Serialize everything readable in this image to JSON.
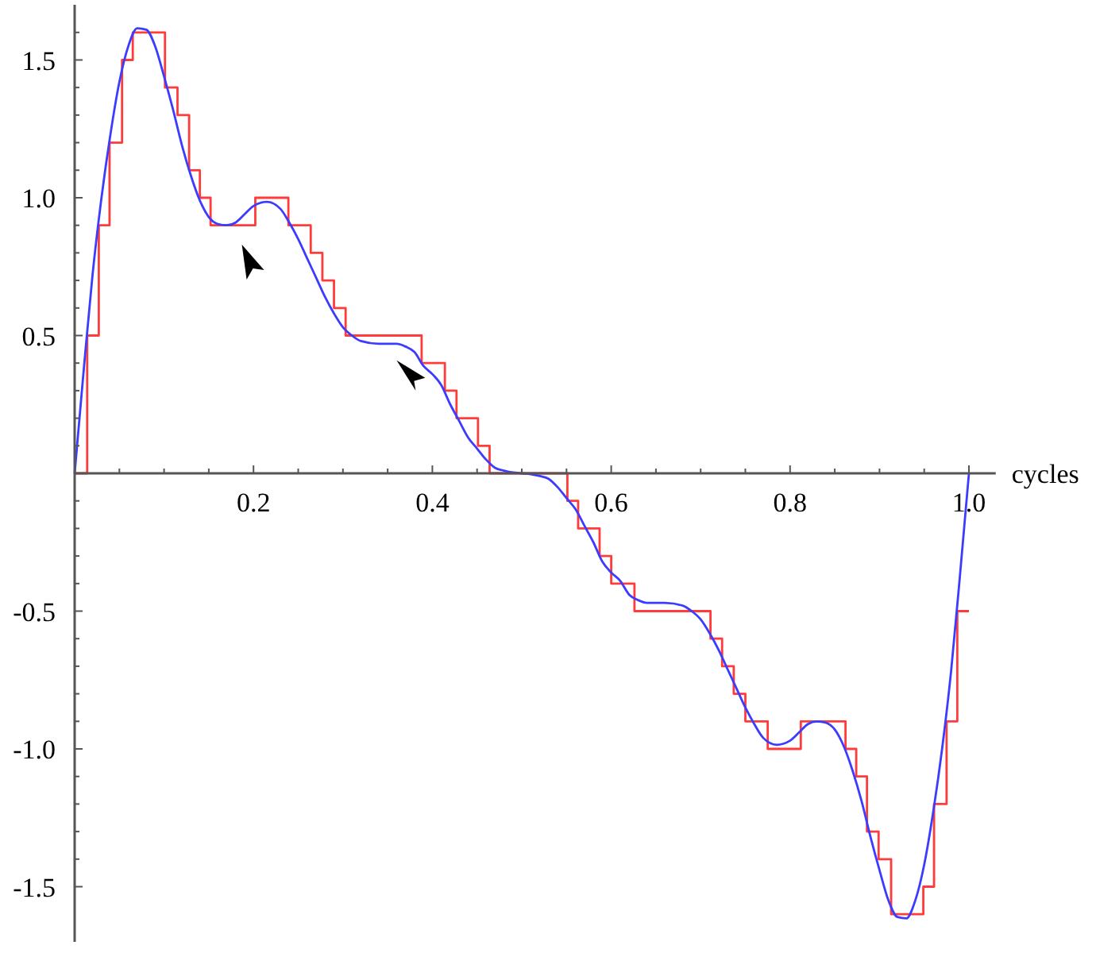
{
  "chart_data": {
    "type": "line",
    "xlabel": "cycles",
    "xlim": [
      0,
      1.03
    ],
    "ylim": [
      -1.7,
      1.7
    ],
    "xticks": [
      {
        "value": 0.05,
        "label": null
      },
      {
        "value": 0.1,
        "label": null
      },
      {
        "value": 0.15,
        "label": null
      },
      0.2,
      {
        "value": 0.25,
        "label": null
      },
      {
        "value": 0.3,
        "label": null
      },
      {
        "value": 0.35,
        "label": null
      },
      0.4,
      {
        "value": 0.45,
        "label": null
      },
      {
        "value": 0.5,
        "label": null
      },
      {
        "value": 0.55,
        "label": null
      },
      0.6,
      {
        "value": 0.65,
        "label": null
      },
      {
        "value": 0.7,
        "label": null
      },
      {
        "value": 0.75,
        "label": null
      },
      0.8,
      {
        "value": 0.85,
        "label": null
      },
      {
        "value": 0.9,
        "label": null
      },
      {
        "value": 0.95,
        "label": null
      },
      {
        "value": 1,
        "label": "1.0"
      }
    ],
    "yticks": [
      {
        "value": -1.5,
        "label": "-1.5"
      },
      {
        "value": -1.4,
        "label": null
      },
      {
        "value": -1.3,
        "label": null
      },
      {
        "value": -1.2,
        "label": null
      },
      {
        "value": -1.1,
        "label": null
      },
      {
        "value": -1,
        "label": "-1.0"
      },
      {
        "value": -0.9,
        "label": null
      },
      {
        "value": -0.8,
        "label": null
      },
      {
        "value": -0.7,
        "label": null
      },
      {
        "value": -0.6,
        "label": null
      },
      -0.5,
      {
        "value": -0.4,
        "label": null
      },
      {
        "value": -0.3,
        "label": null
      },
      {
        "value": -0.2,
        "label": null
      },
      {
        "value": -0.1,
        "label": null
      },
      {
        "value": 0.1,
        "label": null
      },
      {
        "value": 0.2,
        "label": null
      },
      {
        "value": 0.3,
        "label": null
      },
      {
        "value": 0.4,
        "label": null
      },
      0.5,
      {
        "value": 0.6,
        "label": null
      },
      {
        "value": 0.7,
        "label": null
      },
      {
        "value": 0.8,
        "label": null
      },
      {
        "value": 0.9,
        "label": null
      },
      {
        "value": 1,
        "label": "1.0"
      },
      {
        "value": 1.1,
        "label": null
      },
      {
        "value": 1.2,
        "label": null
      },
      {
        "value": 1.3,
        "label": null
      },
      {
        "value": 1.4,
        "label": null
      },
      1.5,
      {
        "value": 1.6,
        "label": null
      }
    ],
    "grid": false,
    "marker": "none",
    "line_style": "solid",
    "series": [
      {
        "type": "step",
        "color": "#ff3b3b",
        "x": [
          0,
          0.014,
          0.027,
          0.039,
          0.053,
          0.065,
          0.101,
          0.115,
          0.128,
          0.14,
          0.152,
          0.202,
          0.239,
          0.264,
          0.277,
          0.29,
          0.303,
          0.388,
          0.414,
          0.427,
          0.451,
          0.464,
          0.551,
          0.563,
          0.587,
          0.6,
          0.626,
          0.711,
          0.724,
          0.737,
          0.75,
          0.775,
          0.812,
          0.862,
          0.874,
          0.886,
          0.899,
          0.913,
          0.949,
          0.961,
          0.975,
          0.987,
          1.0
        ],
        "values": [
          0,
          0.5,
          0.9,
          1.2,
          1.5,
          1.6,
          1.4,
          1.3,
          1.1,
          1.0,
          0.9,
          1.0,
          0.9,
          0.8,
          0.7,
          0.6,
          0.5,
          0.4,
          0.3,
          0.2,
          0.1,
          0,
          -0.1,
          -0.2,
          -0.3,
          -0.4,
          -0.5,
          -0.6,
          -0.7,
          -0.8,
          -0.9,
          -1.0,
          -0.9,
          -1.0,
          -1.1,
          -1.3,
          -1.4,
          -1.6,
          -1.5,
          -1.2,
          -0.9,
          -0.5,
          -0.5
        ]
      },
      {
        "type": "line",
        "color": "#3c3cff",
        "x": [
          0,
          0.01,
          0.02,
          0.03,
          0.04,
          0.05,
          0.06,
          0.07,
          0.08,
          0.09,
          0.1,
          0.11,
          0.12,
          0.13,
          0.14,
          0.15,
          0.16,
          0.17,
          0.18,
          0.19,
          0.2,
          0.215,
          0.23,
          0.24,
          0.25,
          0.26,
          0.27,
          0.28,
          0.29,
          0.3,
          0.31,
          0.32,
          0.34,
          0.36,
          0.37,
          0.38,
          0.39,
          0.4,
          0.41,
          0.42,
          0.43,
          0.44,
          0.45,
          0.46,
          0.47,
          0.48,
          0.49,
          0.5,
          0.51,
          0.52,
          0.53,
          0.54,
          0.55,
          0.56,
          0.57,
          0.58,
          0.59,
          0.6,
          0.61,
          0.62,
          0.63,
          0.64,
          0.66,
          0.68,
          0.69,
          0.7,
          0.71,
          0.72,
          0.73,
          0.74,
          0.75,
          0.76,
          0.77,
          0.785,
          0.8,
          0.81,
          0.82,
          0.83,
          0.84,
          0.85,
          0.86,
          0.87,
          0.88,
          0.89,
          0.9,
          0.91,
          0.92,
          0.93,
          0.94,
          0.95,
          0.96,
          0.97,
          0.98,
          0.99,
          1.0
        ],
        "values": [
          0,
          0.37,
          0.72,
          1.0,
          1.23,
          1.42,
          1.55,
          1.615,
          1.61,
          1.55,
          1.44,
          1.32,
          1.19,
          1.08,
          0.99,
          0.93,
          0.905,
          0.9,
          0.91,
          0.94,
          0.97,
          0.985,
          0.96,
          0.91,
          0.85,
          0.78,
          0.71,
          0.64,
          0.58,
          0.53,
          0.5,
          0.48,
          0.47,
          0.47,
          0.46,
          0.44,
          0.39,
          0.36,
          0.32,
          0.25,
          0.19,
          0.13,
          0.09,
          0.05,
          0.02,
          0.01,
          0.003,
          0,
          -0.003,
          -0.01,
          -0.02,
          -0.05,
          -0.09,
          -0.13,
          -0.19,
          -0.25,
          -0.32,
          -0.36,
          -0.39,
          -0.44,
          -0.46,
          -0.47,
          -0.47,
          -0.48,
          -0.5,
          -0.53,
          -0.58,
          -0.64,
          -0.71,
          -0.78,
          -0.85,
          -0.91,
          -0.96,
          -0.985,
          -0.97,
          -0.94,
          -0.91,
          -0.9,
          -0.905,
          -0.93,
          -0.99,
          -1.08,
          -1.19,
          -1.32,
          -1.44,
          -1.55,
          -1.61,
          -1.615,
          -1.55,
          -1.42,
          -1.23,
          -1.0,
          -0.72,
          -0.37,
          0
        ]
      }
    ]
  }
}
